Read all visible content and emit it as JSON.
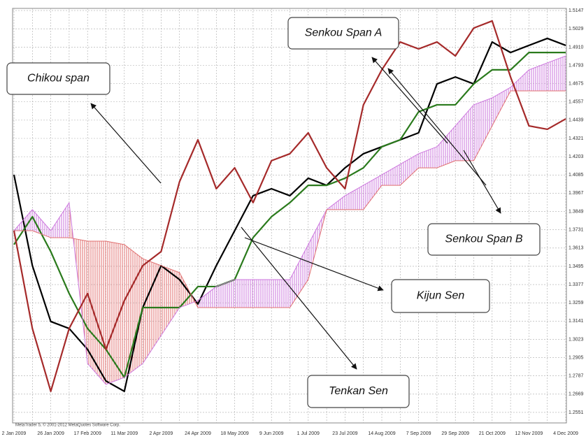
{
  "chart_data": {
    "type": "ichimoku",
    "watermark": "MetaTrader 5, © 2001-2012 MetaQuotes Software Corp.",
    "categories": [
      "2 Jan 2009",
      null,
      "26 Jan 2009",
      null,
      "17 Feb 2009",
      null,
      "11 Mar 2009",
      null,
      "2 Apr 2009",
      null,
      "24 Apr 2009",
      null,
      "18 May 2009",
      null,
      "9 Jun 2009",
      null,
      "1 Jul 2009",
      null,
      "23 Jul 2009",
      null,
      "14 Aug 2009",
      null,
      "7 Sep 2009",
      null,
      "29 Sep 2009",
      null,
      "21 Oct 2009",
      null,
      "12 Nov 2009",
      null,
      "4 Dec 2009"
    ],
    "series": [
      {
        "name": "Tenkan Sen",
        "color": "#000000",
        "values": [
          1.4086,
          1.3499,
          1.3138,
          1.3093,
          1.2958,
          1.2754,
          1.2687,
          1.3228,
          1.3499,
          1.3409,
          1.3251,
          1.3499,
          1.3725,
          1.3951,
          1.3996,
          1.3951,
          1.4064,
          1.4018,
          1.4131,
          1.4222,
          1.4267,
          1.4312,
          1.4357,
          1.4673,
          1.4718,
          1.4673,
          1.4944,
          1.4876,
          1.4922,
          1.4967,
          1.4922
        ]
      },
      {
        "name": "Kijun Sen",
        "color": "#2a7a1c",
        "values": [
          1.3635,
          1.3815,
          1.359,
          1.3319,
          1.3093,
          1.2958,
          1.2777,
          1.3228,
          1.3228,
          1.3228,
          1.3364,
          1.3364,
          1.3409,
          1.368,
          1.3815,
          1.3906,
          1.4018,
          1.4018,
          1.4064,
          1.4131,
          1.4267,
          1.4312,
          1.4493,
          1.4538,
          1.4538,
          1.4673,
          1.4764,
          1.4764,
          1.4876,
          1.4876,
          1.4876
        ]
      },
      {
        "name": "Senkou Span A",
        "color": "#cc77dd",
        "values": [
          1.3725,
          1.3861,
          1.3725,
          1.3906,
          1.2867,
          1.2732,
          1.2777,
          1.2867,
          1.3048,
          1.3228,
          1.3273,
          1.3364,
          1.3409,
          1.3409,
          1.3409,
          1.3409,
          1.3635,
          1.3861,
          1.3951,
          1.4018,
          1.4086,
          1.4154,
          1.4222,
          1.4267,
          1.4402,
          1.4538,
          1.4583,
          1.4651,
          1.4764,
          1.4809,
          1.4854
        ]
      },
      {
        "name": "Senkou Span B",
        "color": "#e07070",
        "values": [
          1.3725,
          1.3725,
          1.368,
          1.368,
          1.3657,
          1.3657,
          1.3635,
          1.3544,
          1.3499,
          1.3454,
          1.3228,
          1.3228,
          1.3228,
          1.3228,
          1.3228,
          1.3228,
          1.3409,
          1.3861,
          1.3861,
          1.3861,
          1.4018,
          1.4018,
          1.4131,
          1.4131,
          1.4177,
          1.4177,
          1.4402,
          1.4628,
          1.4628,
          1.4628,
          1.4628
        ]
      },
      {
        "name": "Chikou span",
        "color": "#a52a2a",
        "values": [
          1.3725,
          1.3093,
          1.2687,
          1.3093,
          1.3319,
          1.2958,
          1.3273,
          1.3499,
          1.359,
          1.4041,
          1.4312,
          1.3996,
          1.4131,
          1.3906,
          1.4177,
          1.4222,
          1.4357,
          1.4131,
          1.3996,
          1.4538,
          1.4764,
          1.4944,
          1.4899,
          1.4944,
          1.4854,
          1.5034,
          1.508,
          1.4718,
          1.4402,
          1.438,
          1.4447
        ]
      }
    ],
    "ylim": [
      1.2483,
      1.5161
    ],
    "yticks": [
      1.5147,
      1.5029,
      {
        "value": 1.491,
        "label": "1.4910"
      },
      1.4793,
      1.4675,
      1.4557,
      1.4439,
      1.4321,
      1.4203,
      1.4085,
      1.3967,
      1.3849,
      1.3731,
      1.3613,
      1.3495,
      1.3377,
      1.3259,
      1.3141,
      1.3023,
      1.2905,
      1.2787,
      1.2669,
      1.2551
    ],
    "grid": true
  }
}
